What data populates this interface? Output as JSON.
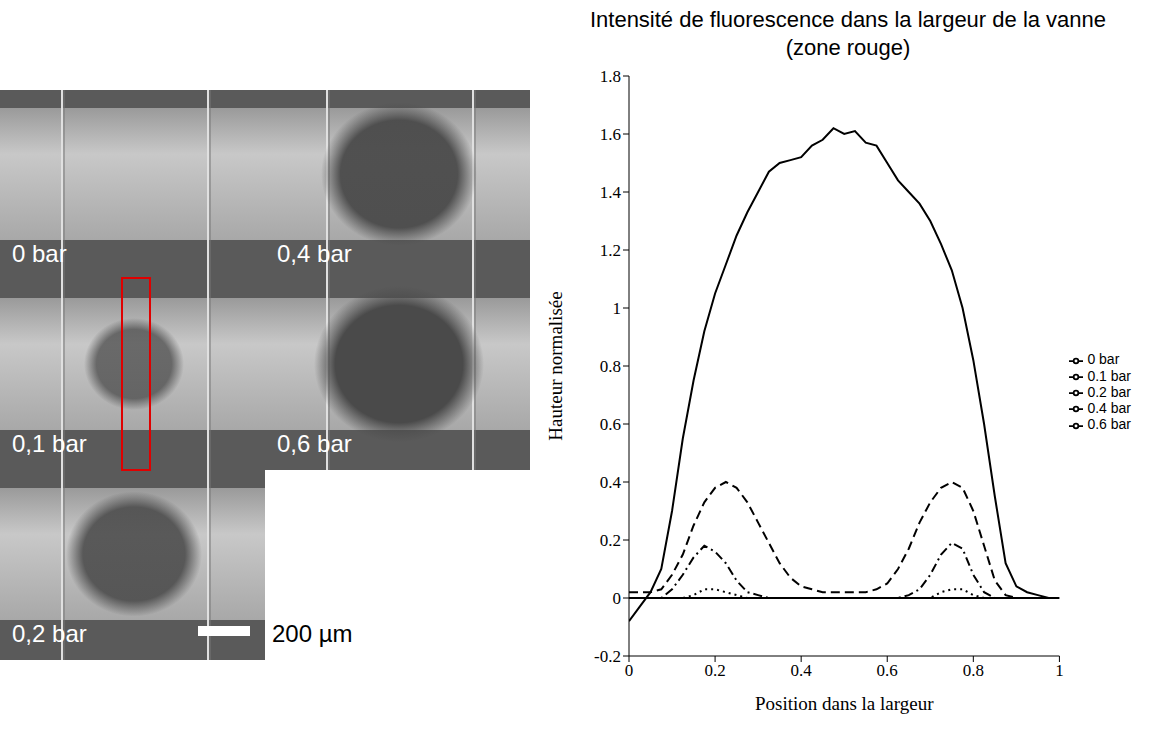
{
  "chart_data": {
    "type": "line",
    "title": "Intensité de fluorescence dans la largeur de la vanne (zone rouge)",
    "x_label": "Position dans la largeur",
    "y_label": "Hauteur normalisée",
    "xlim": [
      0,
      1
    ],
    "xticks": [
      0,
      0.2,
      0.4,
      0.6,
      0.8,
      1
    ],
    "ylim": [
      -0.2,
      1.8
    ],
    "yticks": [
      -0.2,
      0,
      0.2,
      0.4,
      0.6,
      0.8,
      1,
      1.2,
      1.4,
      1.6,
      1.8
    ],
    "legend": "right",
    "grid": false,
    "x": [
      0,
      0.025,
      0.05,
      0.075,
      0.1,
      0.125,
      0.15,
      0.175,
      0.2,
      0.225,
      0.25,
      0.275,
      0.3,
      0.325,
      0.35,
      0.375,
      0.4,
      0.425,
      0.45,
      0.475,
      0.5,
      0.525,
      0.55,
      0.575,
      0.6,
      0.625,
      0.65,
      0.675,
      0.7,
      0.725,
      0.75,
      0.775,
      0.8,
      0.825,
      0.85,
      0.875,
      0.9,
      0.925,
      0.95,
      0.975,
      1
    ],
    "series": [
      {
        "name": "0 bar",
        "color": "#000000",
        "line_style": "solid",
        "values": [
          -0.08,
          -0.03,
          0.02,
          0.1,
          0.3,
          0.55,
          0.75,
          0.92,
          1.05,
          1.15,
          1.25,
          1.33,
          1.4,
          1.47,
          1.5,
          1.51,
          1.52,
          1.56,
          1.58,
          1.62,
          1.6,
          1.61,
          1.57,
          1.56,
          1.5,
          1.44,
          1.4,
          1.36,
          1.3,
          1.22,
          1.13,
          1.0,
          0.82,
          0.6,
          0.35,
          0.12,
          0.04,
          0.02,
          0.01,
          0,
          0
        ]
      },
      {
        "name": "0.1 bar",
        "color": "#000000",
        "line_style": "dashed",
        "values": [
          0.02,
          0.02,
          0.02,
          0.03,
          0.08,
          0.15,
          0.25,
          0.33,
          0.38,
          0.4,
          0.38,
          0.33,
          0.26,
          0.19,
          0.12,
          0.07,
          0.04,
          0.03,
          0.02,
          0.02,
          0.02,
          0.02,
          0.02,
          0.03,
          0.05,
          0.1,
          0.17,
          0.26,
          0.33,
          0.38,
          0.4,
          0.38,
          0.3,
          0.18,
          0.06,
          0.01,
          0,
          0,
          0,
          0,
          0
        ]
      },
      {
        "name": "0.2 bar",
        "color": "#000000",
        "line_style": "dashdot",
        "values": [
          0,
          0,
          0,
          0,
          0.03,
          0.08,
          0.14,
          0.18,
          0.16,
          0.12,
          0.06,
          0.02,
          0.01,
          0,
          0,
          0,
          0,
          0,
          0,
          0,
          0,
          0,
          0,
          0,
          0,
          0,
          0.01,
          0.03,
          0.08,
          0.15,
          0.19,
          0.17,
          0.08,
          0.02,
          0,
          0,
          0,
          0,
          0,
          0,
          0
        ]
      },
      {
        "name": "0.4 bar",
        "color": "#000000",
        "line_style": "dotted",
        "values": [
          0,
          0,
          0,
          0,
          0,
          0,
          0.01,
          0.03,
          0.03,
          0.02,
          0.01,
          0,
          0,
          0,
          0,
          0,
          0,
          0,
          0,
          0,
          0,
          0,
          0,
          0,
          0,
          0,
          0,
          0,
          0,
          0.02,
          0.03,
          0.03,
          0.01,
          0,
          0,
          0,
          0,
          0,
          0,
          0,
          0
        ]
      },
      {
        "name": "0.6 bar",
        "color": "#000000",
        "line_style": "solid",
        "values": [
          0,
          0,
          0,
          0,
          0,
          0,
          0,
          0,
          0,
          0,
          0,
          0,
          0,
          0,
          0,
          0,
          0,
          0,
          0,
          0,
          0,
          0,
          0,
          0,
          0,
          0,
          0,
          0,
          0,
          0,
          0,
          0,
          0,
          0,
          0,
          0,
          0,
          0,
          0,
          0,
          0
        ]
      }
    ]
  },
  "images": {
    "panels": [
      {
        "label": "0 bar"
      },
      {
        "label": "0,4 bar"
      },
      {
        "label": "0,1 bar"
      },
      {
        "label": "0,6 bar"
      },
      {
        "label": "0,2 bar"
      }
    ],
    "scale_bar": "200 µm"
  }
}
